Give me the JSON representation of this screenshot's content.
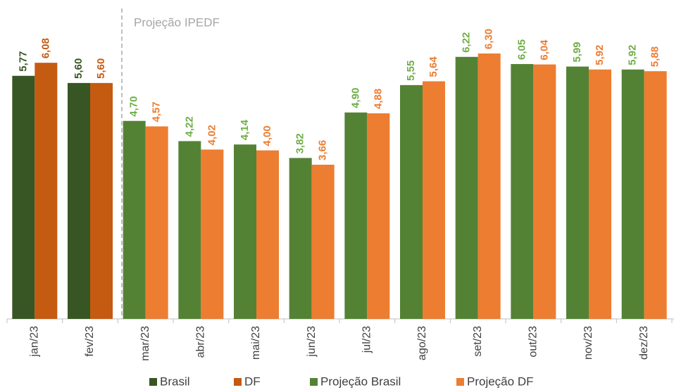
{
  "chart_data": {
    "type": "bar",
    "annotation": "Projeção IPEDF",
    "categories": [
      "jan/23",
      "fev/23",
      "mar/23",
      "abr/23",
      "mai/23",
      "jun/23",
      "jul/23",
      "ago/23",
      "set/23",
      "out/23",
      "nov/23",
      "dez/23"
    ],
    "series": [
      {
        "name": "Brasil",
        "color": "#375623",
        "label_color": "#375623",
        "values": [
          5.77,
          5.6,
          null,
          null,
          null,
          null,
          null,
          null,
          null,
          null,
          null,
          null
        ],
        "value_labels": [
          "5,77",
          "5,60",
          null,
          null,
          null,
          null,
          null,
          null,
          null,
          null,
          null,
          null
        ]
      },
      {
        "name": "DF",
        "color": "#c55a11",
        "label_color": "#c55a11",
        "values": [
          6.08,
          5.6,
          null,
          null,
          null,
          null,
          null,
          null,
          null,
          null,
          null,
          null
        ],
        "value_labels": [
          "6,08",
          "5,60",
          null,
          null,
          null,
          null,
          null,
          null,
          null,
          null,
          null,
          null
        ]
      },
      {
        "name": "Projeção Brasil",
        "color": "#548235",
        "label_color": "#70ad47",
        "values": [
          null,
          null,
          4.7,
          4.22,
          4.14,
          3.82,
          4.9,
          5.55,
          6.22,
          6.05,
          5.99,
          5.92
        ],
        "value_labels": [
          null,
          null,
          "4,70",
          "4,22",
          "4,14",
          "3,82",
          "4,90",
          "5,55",
          "6,22",
          "6,05",
          "5,99",
          "5,92"
        ]
      },
      {
        "name": "Projeção DF",
        "color": "#ed7d31",
        "label_color": "#ed7d31",
        "values": [
          null,
          null,
          4.57,
          4.02,
          4.0,
          3.66,
          4.88,
          5.64,
          6.3,
          6.04,
          5.92,
          5.88
        ],
        "value_labels": [
          null,
          null,
          "4,57",
          "4,02",
          "4,00",
          "3,66",
          "4,88",
          "5,64",
          "6,30",
          "6,04",
          "5,92",
          "5,88"
        ]
      }
    ]
  }
}
